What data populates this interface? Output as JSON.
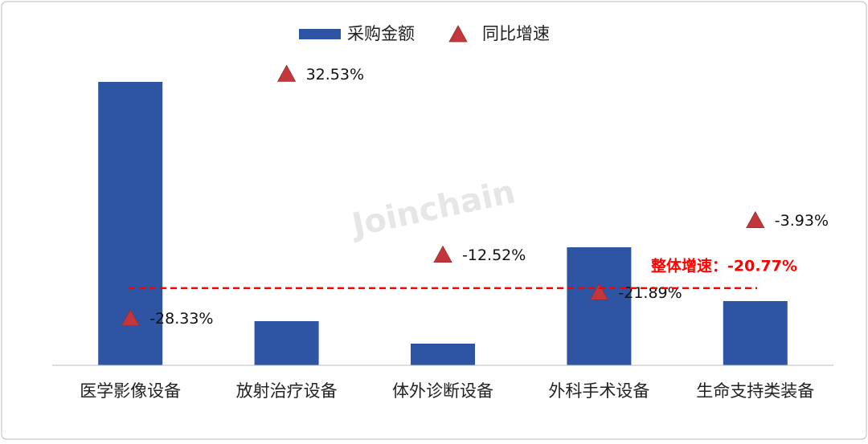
{
  "chart_data": {
    "type": "bar_triangle_combo",
    "categories": [
      "医学影像设备",
      "放射治疗设备",
      "体外诊断设备",
      "外科手术设备",
      "生命支持类装备"
    ],
    "series": [
      {
        "name": "采购金额",
        "type": "bar",
        "color": "#2e54a4",
        "values": [
          353,
          55,
          27,
          147,
          80
        ]
      },
      {
        "name": "同比增速",
        "type": "triangle",
        "axis": "y2",
        "color": "#c3373c",
        "values": [
          -28.33,
          32.53,
          -12.52,
          -21.89,
          -3.93
        ],
        "value_labels": [
          "-28.33%",
          "32.53%",
          "-12.52%",
          "-21.89%",
          "-3.93%"
        ]
      }
    ],
    "ylim": [
      0,
      425
    ],
    "y2lim": [
      -40,
      45
    ],
    "reference_line": {
      "value": -20.77,
      "label": "整体增速：-20.77%",
      "color": "#ff0000"
    },
    "watermark": "Joinchain",
    "legend": "top"
  }
}
